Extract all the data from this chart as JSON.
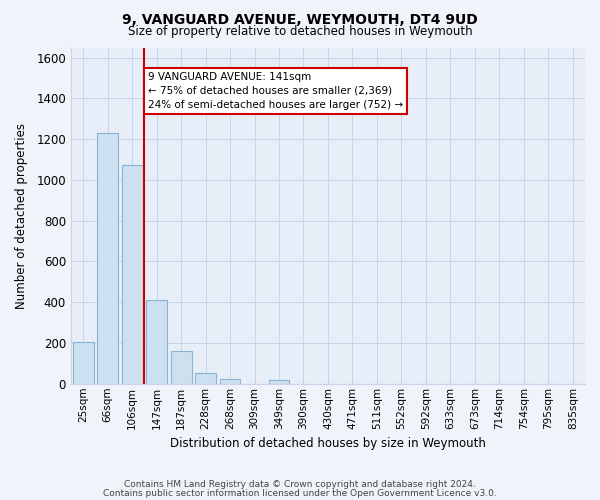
{
  "title": "9, VANGUARD AVENUE, WEYMOUTH, DT4 9UD",
  "subtitle": "Size of property relative to detached houses in Weymouth",
  "xlabel": "Distribution of detached houses by size in Weymouth",
  "ylabel": "Number of detached properties",
  "bar_labels": [
    "25sqm",
    "66sqm",
    "106sqm",
    "147sqm",
    "187sqm",
    "228sqm",
    "268sqm",
    "309sqm",
    "349sqm",
    "390sqm",
    "430sqm",
    "471sqm",
    "511sqm",
    "552sqm",
    "592sqm",
    "633sqm",
    "673sqm",
    "714sqm",
    "754sqm",
    "795sqm",
    "835sqm"
  ],
  "bar_values": [
    205,
    1230,
    1075,
    410,
    160,
    55,
    25,
    0,
    18,
    0,
    0,
    0,
    0,
    0,
    0,
    0,
    0,
    0,
    0,
    0,
    0
  ],
  "bar_color": "#cde0f0",
  "bar_edge_color": "#8ab4d4",
  "vline_color": "#cc0000",
  "ylim": [
    0,
    1650
  ],
  "yticks": [
    0,
    200,
    400,
    600,
    800,
    1000,
    1200,
    1400,
    1600
  ],
  "annotation_line1": "9 VANGUARD AVENUE: 141sqm",
  "annotation_line2": "← 75% of detached houses are smaller (2,369)",
  "annotation_line3": "24% of semi-detached houses are larger (752) →",
  "footer_line1": "Contains HM Land Registry data © Crown copyright and database right 2024.",
  "footer_line2": "Contains public sector information licensed under the Open Government Licence v3.0.",
  "background_color": "#f0f4fa",
  "plot_bg_color": "#e8eef8",
  "grid_color": "#c8d4e8"
}
